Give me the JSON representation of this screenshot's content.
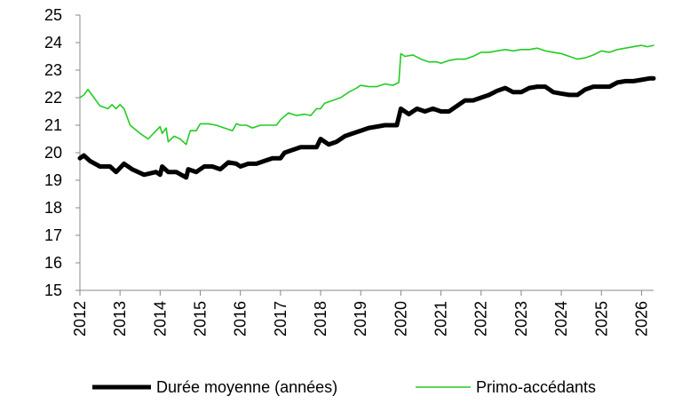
{
  "chart_data": {
    "type": "line",
    "title": "",
    "xlabel": "",
    "ylabel": "",
    "ylim": [
      15,
      25
    ],
    "xlim": [
      2012,
      2026.3
    ],
    "yticks": [
      "15",
      "16",
      "17",
      "18",
      "19",
      "20",
      "21",
      "22",
      "23",
      "24",
      "25"
    ],
    "xticks": [
      "2012",
      "2013",
      "2014",
      "2015",
      "2016",
      "2017",
      "2018",
      "2019",
      "2020",
      "2021",
      "2022",
      "2023",
      "2024",
      "2025",
      "2026"
    ],
    "grid": false,
    "legend_position": "bottom",
    "series": [
      {
        "name": "Durée moyenne (années)",
        "color": "#000000",
        "points": [
          [
            2012.0,
            19.8
          ],
          [
            2012.1,
            19.9
          ],
          [
            2012.25,
            19.7
          ],
          [
            2012.5,
            19.5
          ],
          [
            2012.75,
            19.5
          ],
          [
            2012.9,
            19.3
          ],
          [
            2013.1,
            19.6
          ],
          [
            2013.3,
            19.4
          ],
          [
            2013.6,
            19.2
          ],
          [
            2013.9,
            19.3
          ],
          [
            2014.0,
            19.2
          ],
          [
            2014.05,
            19.5
          ],
          [
            2014.2,
            19.3
          ],
          [
            2014.4,
            19.3
          ],
          [
            2014.65,
            19.1
          ],
          [
            2014.7,
            19.4
          ],
          [
            2014.9,
            19.3
          ],
          [
            2015.1,
            19.5
          ],
          [
            2015.3,
            19.5
          ],
          [
            2015.5,
            19.4
          ],
          [
            2015.7,
            19.65
          ],
          [
            2015.9,
            19.6
          ],
          [
            2016.0,
            19.5
          ],
          [
            2016.2,
            19.6
          ],
          [
            2016.4,
            19.6
          ],
          [
            2016.6,
            19.7
          ],
          [
            2016.8,
            19.8
          ],
          [
            2017.0,
            19.8
          ],
          [
            2017.1,
            20.0
          ],
          [
            2017.3,
            20.1
          ],
          [
            2017.5,
            20.2
          ],
          [
            2017.7,
            20.2
          ],
          [
            2017.9,
            20.2
          ],
          [
            2018.0,
            20.5
          ],
          [
            2018.2,
            20.3
          ],
          [
            2018.4,
            20.4
          ],
          [
            2018.6,
            20.6
          ],
          [
            2018.8,
            20.7
          ],
          [
            2019.0,
            20.8
          ],
          [
            2019.2,
            20.9
          ],
          [
            2019.4,
            20.95
          ],
          [
            2019.6,
            21.0
          ],
          [
            2019.9,
            21.0
          ],
          [
            2020.0,
            21.6
          ],
          [
            2020.2,
            21.4
          ],
          [
            2020.4,
            21.6
          ],
          [
            2020.6,
            21.5
          ],
          [
            2020.8,
            21.6
          ],
          [
            2021.0,
            21.5
          ],
          [
            2021.2,
            21.5
          ],
          [
            2021.4,
            21.7
          ],
          [
            2021.6,
            21.9
          ],
          [
            2021.8,
            21.9
          ],
          [
            2022.0,
            22.0
          ],
          [
            2022.2,
            22.1
          ],
          [
            2022.4,
            22.25
          ],
          [
            2022.6,
            22.35
          ],
          [
            2022.8,
            22.2
          ],
          [
            2023.0,
            22.2
          ],
          [
            2023.2,
            22.35
          ],
          [
            2023.4,
            22.4
          ],
          [
            2023.6,
            22.4
          ],
          [
            2023.8,
            22.2
          ],
          [
            2024.0,
            22.15
          ],
          [
            2024.2,
            22.1
          ],
          [
            2024.4,
            22.1
          ],
          [
            2024.6,
            22.3
          ],
          [
            2024.8,
            22.4
          ],
          [
            2025.0,
            22.4
          ],
          [
            2025.2,
            22.4
          ],
          [
            2025.4,
            22.55
          ],
          [
            2025.6,
            22.6
          ],
          [
            2025.8,
            22.6
          ],
          [
            2026.0,
            22.65
          ],
          [
            2026.2,
            22.7
          ],
          [
            2026.3,
            22.7
          ]
        ]
      },
      {
        "name": "Primo-accédants",
        "color": "#22cc22",
        "points": [
          [
            2012.0,
            22.0
          ],
          [
            2012.1,
            22.1
          ],
          [
            2012.2,
            22.3
          ],
          [
            2012.3,
            22.1
          ],
          [
            2012.5,
            21.7
          ],
          [
            2012.7,
            21.6
          ],
          [
            2012.8,
            21.75
          ],
          [
            2012.9,
            21.6
          ],
          [
            2013.0,
            21.75
          ],
          [
            2013.1,
            21.6
          ],
          [
            2013.25,
            21.0
          ],
          [
            2013.5,
            20.7
          ],
          [
            2013.7,
            20.5
          ],
          [
            2013.9,
            20.8
          ],
          [
            2014.0,
            20.95
          ],
          [
            2014.05,
            20.7
          ],
          [
            2014.15,
            20.9
          ],
          [
            2014.2,
            20.4
          ],
          [
            2014.35,
            20.6
          ],
          [
            2014.5,
            20.5
          ],
          [
            2014.65,
            20.3
          ],
          [
            2014.75,
            20.8
          ],
          [
            2014.9,
            20.8
          ],
          [
            2015.0,
            21.05
          ],
          [
            2015.2,
            21.05
          ],
          [
            2015.4,
            21.0
          ],
          [
            2015.6,
            20.9
          ],
          [
            2015.8,
            20.8
          ],
          [
            2015.9,
            21.05
          ],
          [
            2016.0,
            21.0
          ],
          [
            2016.15,
            21.0
          ],
          [
            2016.3,
            20.9
          ],
          [
            2016.5,
            21.0
          ],
          [
            2016.7,
            21.0
          ],
          [
            2016.9,
            21.0
          ],
          [
            2017.0,
            21.2
          ],
          [
            2017.2,
            21.45
          ],
          [
            2017.4,
            21.35
          ],
          [
            2017.6,
            21.4
          ],
          [
            2017.75,
            21.35
          ],
          [
            2017.9,
            21.6
          ],
          [
            2018.0,
            21.6
          ],
          [
            2018.1,
            21.8
          ],
          [
            2018.3,
            21.9
          ],
          [
            2018.5,
            22.0
          ],
          [
            2018.7,
            22.2
          ],
          [
            2018.9,
            22.35
          ],
          [
            2019.0,
            22.45
          ],
          [
            2019.2,
            22.4
          ],
          [
            2019.4,
            22.4
          ],
          [
            2019.6,
            22.5
          ],
          [
            2019.8,
            22.45
          ],
          [
            2019.95,
            22.55
          ],
          [
            2020.0,
            23.6
          ],
          [
            2020.1,
            23.5
          ],
          [
            2020.3,
            23.55
          ],
          [
            2020.5,
            23.4
          ],
          [
            2020.7,
            23.3
          ],
          [
            2020.9,
            23.3
          ],
          [
            2021.0,
            23.25
          ],
          [
            2021.2,
            23.35
          ],
          [
            2021.4,
            23.4
          ],
          [
            2021.6,
            23.4
          ],
          [
            2021.8,
            23.5
          ],
          [
            2022.0,
            23.65
          ],
          [
            2022.2,
            23.65
          ],
          [
            2022.4,
            23.7
          ],
          [
            2022.6,
            23.75
          ],
          [
            2022.8,
            23.7
          ],
          [
            2023.0,
            23.75
          ],
          [
            2023.2,
            23.75
          ],
          [
            2023.4,
            23.8
          ],
          [
            2023.6,
            23.7
          ],
          [
            2023.8,
            23.65
          ],
          [
            2024.0,
            23.6
          ],
          [
            2024.2,
            23.5
          ],
          [
            2024.4,
            23.4
          ],
          [
            2024.6,
            23.45
          ],
          [
            2024.8,
            23.55
          ],
          [
            2025.0,
            23.7
          ],
          [
            2025.2,
            23.65
          ],
          [
            2025.4,
            23.75
          ],
          [
            2025.6,
            23.8
          ],
          [
            2025.8,
            23.85
          ],
          [
            2026.0,
            23.9
          ],
          [
            2026.15,
            23.85
          ],
          [
            2026.3,
            23.9
          ]
        ]
      }
    ]
  }
}
